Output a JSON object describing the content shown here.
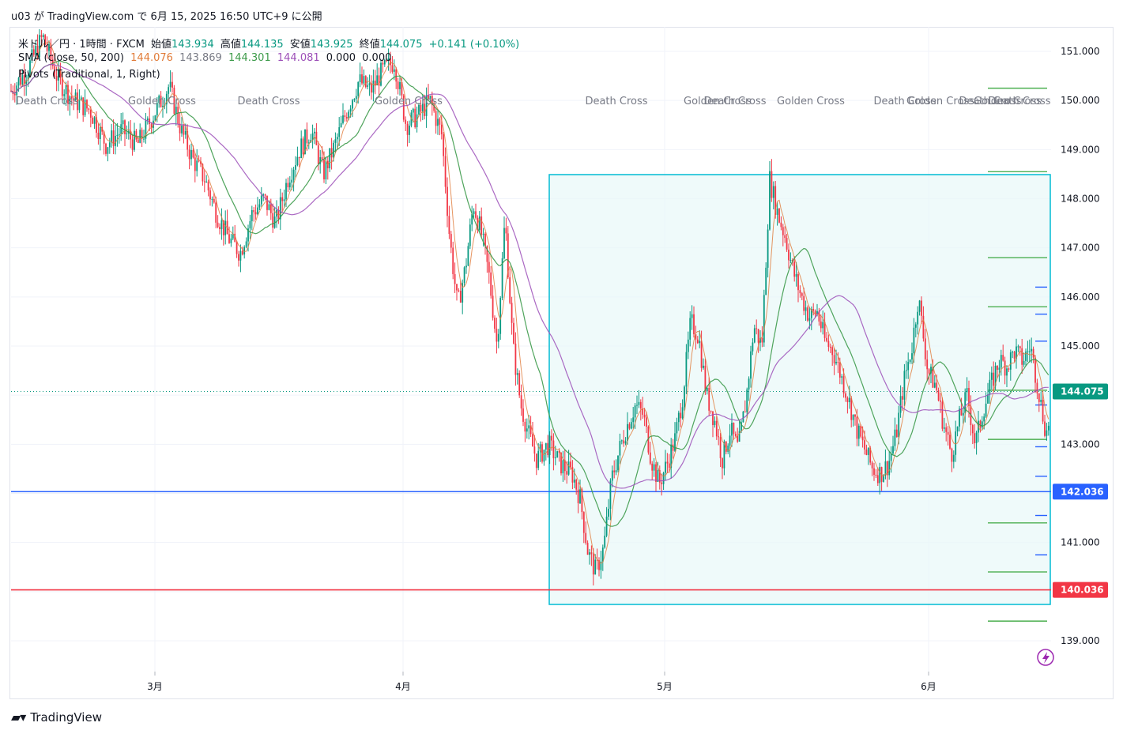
{
  "caption": "u03 が TradingView.com で 6月 15, 2025 16:50 UTC+9 に公開",
  "legend": {
    "symbol": "米ドル／円 · 1時間 · FXCM",
    "open_label": "始値",
    "open": "143.934",
    "high_label": "高値",
    "high": "144.135",
    "low_label": "安値",
    "low": "143.925",
    "close_label": "終値",
    "close": "144.075",
    "change": "+0.141 (+0.10%)",
    "sma_label": "SMA (close, 50, 200)",
    "sma_values": [
      "144.076",
      "143.869",
      "144.301",
      "144.081",
      "0.000",
      "0.000"
    ],
    "pivots_label": "Pivots (Traditional, 1, Right)"
  },
  "footer": {
    "brand": "TradingView",
    "logo_icon": "tradingview-logo-icon"
  },
  "colors": {
    "up": "#089981",
    "down": "#f23645",
    "sma_fast": "#e07b39",
    "sma_mid": "#3c9a4a",
    "sma_slow": "#9c4fb8",
    "support": "#2962ff",
    "resistance": "#f23645",
    "range_border": "#00bcd4",
    "range_fill": "#e8f8f8",
    "pivot_green": "#4caf50",
    "pivot_blue": "#2962ff"
  },
  "chart_data": {
    "type": "candlestick",
    "title": "",
    "y_ticks": [
      "151.000",
      "150.000",
      "149.000",
      "148.000",
      "147.000",
      "146.000",
      "145.000",
      "144.000",
      "143.000",
      "142.000",
      "141.000",
      "140.000",
      "139.000"
    ],
    "y_range": [
      138.0,
      151.5
    ],
    "x_ticks": [
      "3月",
      "4月",
      "5月",
      "6月"
    ],
    "price_labels": [
      {
        "value": 144.075,
        "text": "144.075",
        "color": "#089981"
      },
      {
        "value": 142.036,
        "text": "142.036",
        "color": "#2962ff"
      },
      {
        "value": 140.036,
        "text": "140.036",
        "color": "#f23645"
      }
    ],
    "horizontal_lines": [
      {
        "value": 142.036,
        "color": "#2962ff"
      },
      {
        "value": 140.036,
        "color": "#f23645"
      },
      {
        "value": 144.075,
        "color": "#089981",
        "style": "dotted"
      }
    ],
    "cross_labels": [
      "Death Cross",
      "Golden Cross",
      "Death Cross",
      "Golden Cross",
      "Death Cross",
      "Golden Cross",
      "Death Cross",
      "Golden Cross",
      "Death Cross",
      "Golden Cross",
      "Death Cross",
      "Golden Cross",
      "Death Cross",
      "Golden Cross",
      "Death C"
    ],
    "pivot_levels_green": [
      150.25,
      148.55,
      146.8,
      145.8,
      144.1,
      143.1,
      141.4,
      140.4,
      139.4
    ],
    "pivot_levels_blue": [
      146.2,
      145.65,
      145.1,
      143.8,
      142.95,
      142.35,
      141.55,
      140.75
    ],
    "price_path": [
      [
        0,
        150.2
      ],
      [
        20,
        150.6
      ],
      [
        40,
        151.3
      ],
      [
        60,
        150.4
      ],
      [
        80,
        150.0
      ],
      [
        100,
        149.8
      ],
      [
        120,
        149.1
      ],
      [
        140,
        149.4
      ],
      [
        160,
        149.1
      ],
      [
        180,
        149.7
      ],
      [
        200,
        150.3
      ],
      [
        215,
        149.4
      ],
      [
        230,
        148.8
      ],
      [
        245,
        148.4
      ],
      [
        260,
        147.7
      ],
      [
        275,
        147.2
      ],
      [
        290,
        146.9
      ],
      [
        305,
        147.7
      ],
      [
        320,
        148.0
      ],
      [
        335,
        147.5
      ],
      [
        350,
        148.4
      ],
      [
        365,
        149.0
      ],
      [
        380,
        149.4
      ],
      [
        395,
        148.5
      ],
      [
        410,
        149.1
      ],
      [
        425,
        149.8
      ],
      [
        440,
        150.4
      ],
      [
        455,
        150.2
      ],
      [
        470,
        150.6
      ],
      [
        485,
        150.8
      ],
      [
        500,
        149.5
      ],
      [
        515,
        149.7
      ],
      [
        530,
        150.0
      ],
      [
        545,
        149.3
      ],
      [
        555,
        147.2
      ],
      [
        565,
        145.8
      ],
      [
        575,
        146.6
      ],
      [
        585,
        147.9
      ],
      [
        595,
        147.3
      ],
      [
        605,
        146.4
      ],
      [
        615,
        145.0
      ],
      [
        625,
        147.6
      ],
      [
        635,
        145.0
      ],
      [
        645,
        143.8
      ],
      [
        655,
        143.2
      ],
      [
        665,
        142.7
      ],
      [
        680,
        143.0
      ],
      [
        695,
        142.6
      ],
      [
        710,
        142.4
      ],
      [
        720,
        141.9
      ],
      [
        730,
        140.8
      ],
      [
        740,
        140.4
      ],
      [
        750,
        140.9
      ],
      [
        760,
        142.3
      ],
      [
        770,
        142.9
      ],
      [
        780,
        143.4
      ],
      [
        790,
        143.8
      ],
      [
        800,
        143.6
      ],
      [
        810,
        142.7
      ],
      [
        820,
        142.2
      ],
      [
        830,
        142.6
      ],
      [
        840,
        143.1
      ],
      [
        850,
        144.0
      ],
      [
        860,
        145.5
      ],
      [
        870,
        145.2
      ],
      [
        880,
        144.0
      ],
      [
        890,
        143.5
      ],
      [
        900,
        142.7
      ],
      [
        910,
        143.3
      ],
      [
        920,
        142.9
      ],
      [
        930,
        143.9
      ],
      [
        940,
        145.4
      ],
      [
        950,
        145.0
      ],
      [
        960,
        148.4
      ],
      [
        970,
        147.7
      ],
      [
        980,
        147.2
      ],
      [
        990,
        146.5
      ],
      [
        1000,
        146.0
      ],
      [
        1010,
        145.6
      ],
      [
        1020,
        145.7
      ],
      [
        1030,
        145.1
      ],
      [
        1040,
        144.9
      ],
      [
        1050,
        144.4
      ],
      [
        1060,
        143.9
      ],
      [
        1070,
        143.3
      ],
      [
        1080,
        142.9
      ],
      [
        1090,
        142.5
      ],
      [
        1100,
        142.4
      ],
      [
        1110,
        142.6
      ],
      [
        1120,
        143.2
      ],
      [
        1130,
        144.3
      ],
      [
        1140,
        145.0
      ],
      [
        1148,
        146.0
      ],
      [
        1160,
        144.5
      ],
      [
        1170,
        144.2
      ],
      [
        1180,
        143.4
      ],
      [
        1190,
        142.8
      ],
      [
        1200,
        143.5
      ],
      [
        1210,
        144.0
      ],
      [
        1220,
        143.0
      ],
      [
        1230,
        143.7
      ],
      [
        1240,
        144.2
      ],
      [
        1250,
        144.7
      ],
      [
        1260,
        144.6
      ],
      [
        1270,
        144.9
      ],
      [
        1280,
        144.7
      ],
      [
        1290,
        145.0
      ],
      [
        1300,
        144.1
      ],
      [
        1310,
        143.2
      ],
      [
        1320,
        144.075
      ]
    ]
  }
}
